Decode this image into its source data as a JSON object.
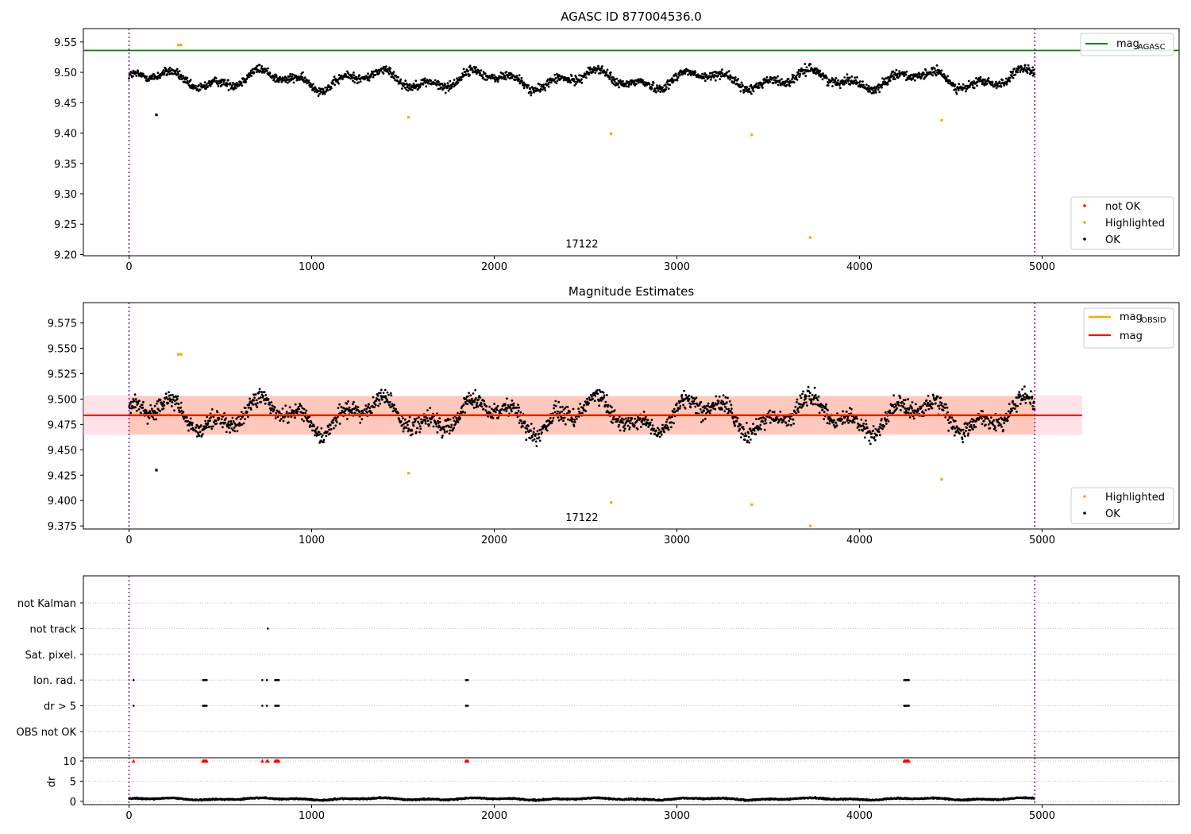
{
  "chart_data": [
    {
      "type": "scatter",
      "title": "AGASC ID 877004536.0",
      "xlim": [
        -250,
        5750
      ],
      "ylim": [
        9.198,
        9.572
      ],
      "xticks": [
        0,
        1000,
        2000,
        3000,
        4000,
        5000
      ],
      "yticks": [
        9.2,
        9.25,
        9.3,
        9.35,
        9.4,
        9.45,
        9.5,
        9.55
      ],
      "grid": false,
      "annotations": [
        {
          "text": "17122",
          "x": 2480,
          "y": 9.212
        }
      ],
      "vlines": [
        0,
        4960
      ],
      "hline": {
        "y": 9.536,
        "x_from": -250,
        "x_to": 5750,
        "legend": "mag",
        "legend_sub": "AGASC",
        "color": "#008000"
      },
      "series": [
        {
          "name": "not OK",
          "color": "#ff0000",
          "points": []
        },
        {
          "name": "Highlighted",
          "color": "#ffa500",
          "points": [
            [
              270,
              9.545
            ],
            [
              285,
              9.545
            ],
            [
              1530,
              9.426
            ],
            [
              2640,
              9.399
            ],
            [
              3410,
              9.397
            ],
            [
              3730,
              9.228
            ],
            [
              4450,
              9.421
            ]
          ]
        },
        {
          "name": "OK",
          "color": "#000000",
          "points": [
            [
              150,
              9.43
            ]
          ]
        }
      ],
      "legend": [
        {
          "label": "mag",
          "sub": "AGASC",
          "kind": "line",
          "color": "#008000",
          "loc": "upper right"
        },
        {
          "label": "not OK",
          "kind": "marker",
          "color": "#ff0000",
          "loc": "lower right"
        },
        {
          "label": "Highlighted",
          "kind": "marker",
          "color": "#ffa500",
          "loc": "lower right"
        },
        {
          "label": "OK",
          "kind": "marker",
          "color": "#000000",
          "loc": "lower right"
        }
      ],
      "dense_series": {
        "name": "OK",
        "color": "#000000",
        "x_range": [
          0,
          4960
        ],
        "base": 9.488,
        "amplitude": 0.018,
        "noise": 0.012,
        "count": 2100
      }
    },
    {
      "type": "scatter",
      "title": "Magnitude Estimates",
      "xlim": [
        -250,
        5750
      ],
      "ylim": [
        9.372,
        9.595
      ],
      "xticks": [
        0,
        1000,
        2000,
        3000,
        4000,
        5000
      ],
      "yticks": [
        9.375,
        9.4,
        9.425,
        9.45,
        9.475,
        9.5,
        9.525,
        9.55,
        9.575
      ],
      "grid": false,
      "annotations": [
        {
          "text": "17122",
          "x": 2480,
          "y": 9.38
        }
      ],
      "vlines": [
        0,
        4960
      ],
      "bands": [
        {
          "y0": 9.4645,
          "y1": 9.5035,
          "x0": -250,
          "x1": 5220,
          "color": "#ffc0cb",
          "opacity": 0.45
        },
        {
          "y0": 9.4655,
          "y1": 9.5025,
          "x0": 0,
          "x1": 4960,
          "color": "#ffa07a",
          "opacity": 0.4
        }
      ],
      "mag_line": {
        "y": 9.484,
        "x_from": -250,
        "x_to": 5220,
        "color": "#ff0000"
      },
      "obsid_line": {
        "y": 9.4845,
        "x_from": 0,
        "x_to": 4960,
        "color": "#ffa500"
      },
      "series": [
        {
          "name": "Highlighted",
          "color": "#ffa500",
          "points": [
            [
              270,
              9.544
            ],
            [
              285,
              9.544
            ],
            [
              1530,
              9.427
            ],
            [
              2640,
              9.398
            ],
            [
              3410,
              9.396
            ],
            [
              4450,
              9.421
            ],
            [
              3730,
              9.375
            ]
          ]
        },
        {
          "name": "OK",
          "color": "#000000",
          "points": [
            [
              150,
              9.43
            ]
          ]
        }
      ],
      "legend": [
        {
          "label": "mag",
          "sub": "OBSID",
          "kind": "line",
          "color": "#ffa500",
          "loc": "upper right"
        },
        {
          "label": "mag",
          "kind": "line",
          "color": "#ff0000",
          "loc": "upper right"
        },
        {
          "label": "Highlighted",
          "kind": "marker",
          "color": "#ffa500",
          "loc": "lower right"
        },
        {
          "label": "OK",
          "kind": "marker",
          "color": "#000000",
          "loc": "lower right"
        }
      ],
      "dense_series": {
        "name": "OK",
        "color": "#000000",
        "x_range": [
          0,
          4960
        ],
        "base": 9.484,
        "amplitude": 0.02,
        "noise": 0.014,
        "count": 2100
      }
    },
    {
      "type": "scatter",
      "xlim": [
        -250,
        5750
      ],
      "categories": [
        "not Kalman",
        "not track",
        "Sat. pixel.",
        "Ion. rad.",
        "dr > 5",
        "OBS not OK"
      ],
      "grid": true,
      "vlines": [
        0,
        4960
      ],
      "flag_points": {
        "not Kalman": [],
        "not track": [
          760
        ],
        "Sat. pixel.": [],
        "Ion. rad.": [
          25,
          405,
          410,
          415,
          420,
          425,
          730,
          755,
          800,
          805,
          810,
          815,
          820,
          1845,
          1850,
          1855,
          4245,
          4250,
          4255,
          4260,
          4265,
          4270
        ],
        "dr > 5": [
          25,
          405,
          410,
          415,
          420,
          425,
          730,
          755,
          800,
          805,
          810,
          815,
          820,
          1845,
          1850,
          1855,
          4245,
          4250,
          4255,
          4260,
          4265,
          4270
        ],
        "OBS not OK": []
      }
    },
    {
      "type": "scatter",
      "xlim": [
        -250,
        5750
      ],
      "ylabel": "dr",
      "ylim": [
        -0.8,
        10.8
      ],
      "yticks": [
        0,
        5,
        10
      ],
      "xticks": [
        0,
        1000,
        2000,
        3000,
        4000,
        5000
      ],
      "grid": true,
      "vlines": [
        0,
        4960
      ],
      "series": [
        {
          "name": "dr > 5",
          "color": "#ff0000",
          "marker": "triangle",
          "points": [
            [
              25,
              10
            ],
            [
              405,
              10
            ],
            [
              410,
              10
            ],
            [
              415,
              10
            ],
            [
              420,
              10
            ],
            [
              425,
              10
            ],
            [
              730,
              10
            ],
            [
              755,
              10
            ],
            [
              760,
              10
            ],
            [
              800,
              10
            ],
            [
              805,
              10
            ],
            [
              810,
              10
            ],
            [
              815,
              10
            ],
            [
              820,
              10
            ],
            [
              1845,
              10
            ],
            [
              1850,
              10
            ],
            [
              1855,
              10
            ],
            [
              4245,
              10
            ],
            [
              4250,
              10
            ],
            [
              4255,
              10
            ],
            [
              4260,
              10
            ],
            [
              4265,
              10
            ],
            [
              4270,
              10
            ]
          ]
        }
      ],
      "dense_series": {
        "name": "dr",
        "color": "#000000",
        "x_range": [
          0,
          4960
        ],
        "base": 0.6,
        "amplitude": 0.3,
        "noise": 0.25,
        "count": 2100
      }
    }
  ]
}
